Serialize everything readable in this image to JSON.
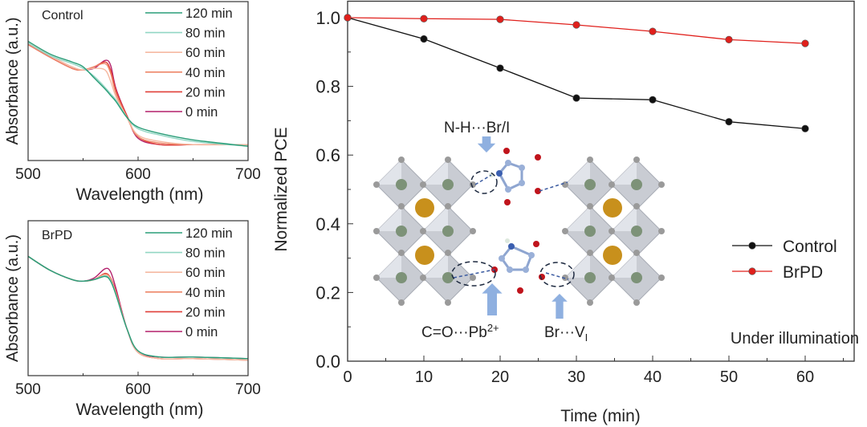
{
  "chart_data": [
    {
      "type": "line",
      "panel": "top-left",
      "annotation": "Control",
      "xlabel": "Wavelength (nm)",
      "ylabel": "Absorbance (a.u.)",
      "xlim": [
        500,
        700
      ],
      "ylim": [
        0,
        1
      ],
      "xticks": [
        "500",
        "600",
        "700"
      ],
      "legend_position": "top-right",
      "x": [
        500,
        520,
        540,
        550,
        560,
        570,
        575,
        580,
        590,
        600,
        620,
        650,
        700
      ],
      "series": [
        {
          "name": "120 min",
          "color": "#2a9d78",
          "values": [
            0.75,
            0.67,
            0.62,
            0.59,
            0.52,
            0.45,
            0.41,
            0.37,
            0.27,
            0.21,
            0.17,
            0.13,
            0.09
          ]
        },
        {
          "name": "80 min",
          "color": "#92d6c4",
          "values": [
            0.74,
            0.66,
            0.61,
            0.58,
            0.53,
            0.46,
            0.42,
            0.38,
            0.27,
            0.2,
            0.16,
            0.12,
            0.09
          ]
        },
        {
          "name": "60 min",
          "color": "#f5b9a2",
          "values": [
            0.74,
            0.66,
            0.59,
            0.57,
            0.58,
            0.57,
            0.5,
            0.4,
            0.27,
            0.16,
            0.12,
            0.1,
            0.1
          ]
        },
        {
          "name": "40 min",
          "color": "#ee8668",
          "values": [
            0.73,
            0.65,
            0.58,
            0.57,
            0.59,
            0.61,
            0.55,
            0.42,
            0.27,
            0.15,
            0.11,
            0.1,
            0.1
          ]
        },
        {
          "name": "20 min",
          "color": "#e0403a",
          "values": [
            0.73,
            0.65,
            0.58,
            0.57,
            0.59,
            0.62,
            0.57,
            0.44,
            0.28,
            0.15,
            0.1,
            0.1,
            0.1
          ]
        },
        {
          "name": "0 min",
          "color": "#b3206c",
          "values": [
            0.73,
            0.65,
            0.58,
            0.57,
            0.58,
            0.63,
            0.6,
            0.45,
            0.28,
            0.14,
            0.1,
            0.1,
            0.1
          ]
        }
      ]
    },
    {
      "type": "line",
      "panel": "bottom-left",
      "annotation": "BrPD",
      "xlabel": "Wavelength (nm)",
      "ylabel": "Absorbance (a.u.)",
      "xlim": [
        500,
        700
      ],
      "ylim": [
        0,
        1
      ],
      "xticks": [
        "500",
        "600",
        "700"
      ],
      "legend_position": "top-right",
      "x": [
        500,
        520,
        540,
        550,
        560,
        570,
        575,
        580,
        590,
        600,
        620,
        650,
        700
      ],
      "series": [
        {
          "name": "120 min",
          "color": "#2a9d78",
          "values": [
            0.77,
            0.68,
            0.62,
            0.61,
            0.62,
            0.64,
            0.61,
            0.52,
            0.3,
            0.16,
            0.12,
            0.12,
            0.11
          ]
        },
        {
          "name": "80 min",
          "color": "#92d6c4",
          "values": [
            0.77,
            0.68,
            0.62,
            0.61,
            0.62,
            0.645,
            0.615,
            0.52,
            0.3,
            0.16,
            0.12,
            0.12,
            0.11
          ]
        },
        {
          "name": "60 min",
          "color": "#f5b9a2",
          "values": [
            0.77,
            0.68,
            0.62,
            0.61,
            0.62,
            0.65,
            0.62,
            0.53,
            0.3,
            0.15,
            0.11,
            0.11,
            0.1
          ]
        },
        {
          "name": "40 min",
          "color": "#ee8668",
          "values": [
            0.77,
            0.68,
            0.62,
            0.61,
            0.62,
            0.655,
            0.625,
            0.53,
            0.3,
            0.15,
            0.11,
            0.11,
            0.1
          ]
        },
        {
          "name": "20 min",
          "color": "#e0403a",
          "values": [
            0.77,
            0.68,
            0.62,
            0.61,
            0.62,
            0.66,
            0.63,
            0.54,
            0.3,
            0.15,
            0.11,
            0.11,
            0.1
          ]
        },
        {
          "name": "0 min",
          "color": "#b3206c",
          "values": [
            0.77,
            0.68,
            0.62,
            0.61,
            0.63,
            0.69,
            0.67,
            0.56,
            0.3,
            0.15,
            0.12,
            0.12,
            0.11
          ]
        }
      ]
    },
    {
      "type": "line",
      "panel": "right",
      "xlabel": "Time (min)",
      "ylabel": "Normalized PCE",
      "xlim": [
        0,
        66
      ],
      "ylim": [
        0,
        1.05
      ],
      "xticks": [
        "0",
        "10",
        "20",
        "30",
        "40",
        "50",
        "60"
      ],
      "yticks": [
        "0.0",
        "0.2",
        "0.4",
        "0.6",
        "0.8",
        "1.0"
      ],
      "legend_position": "bottom-right",
      "annotation": "Under illumination",
      "x": [
        0,
        10,
        20,
        30,
        40,
        50,
        60
      ],
      "series": [
        {
          "name": "Control",
          "color": "#111111",
          "values": [
            1.0,
            0.938,
            0.853,
            0.766,
            0.761,
            0.697,
            0.677
          ]
        },
        {
          "name": "BrPD",
          "color": "#e0201c",
          "values": [
            1.0,
            0.997,
            0.995,
            0.979,
            0.96,
            0.936,
            0.925
          ]
        }
      ],
      "inset_labels": {
        "nh": "N-H···Br/I",
        "co_pre": "C=O···Pb",
        "co_sup": "2+",
        "br_pre": "Br···V",
        "br_sub": "I"
      }
    }
  ]
}
